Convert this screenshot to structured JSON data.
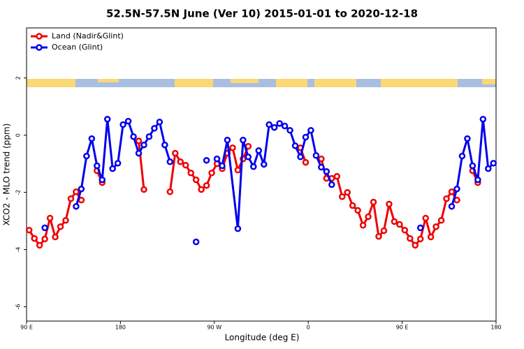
{
  "chart_data": {
    "type": "line",
    "title": "52.5N-57.5N June (Ver 10)   2015-01-01 to 2020-12-18",
    "x_label": "Longitude (deg E)",
    "y_label": "XCO2 - MLO trend (ppm)",
    "xlim": [
      90,
      540
    ],
    "ylim": [
      -6.5,
      3.75
    ],
    "xticks": [
      {
        "value": 90,
        "label": "90 E"
      },
      180,
      {
        "value": 270,
        "label": "90 W"
      },
      {
        "value": 360,
        "label": "0"
      },
      {
        "value": 450,
        "label": "90 E"
      },
      {
        "value": 540,
        "label": "180"
      }
    ],
    "yticks": [
      -6,
      -4,
      -2,
      0,
      2
    ],
    "legend": "top-left",
    "series": [
      {
        "name": "Land (Nadir&Glint)",
        "color": "#ee0000",
        "x": [
          92.5,
          97.5,
          102.5,
          107.5,
          112.5,
          117.5,
          122.5,
          127.5,
          132.5,
          137.5,
          142.5,
          null,
          157.5,
          162.5,
          null,
          197.5,
          202.5,
          null,
          227.5,
          232.5,
          237.5,
          242.5,
          247.5,
          252.5,
          257.5,
          262.5,
          267.5,
          272.5,
          277.5,
          282.5,
          287.5,
          292.5,
          297.5,
          302.5,
          null,
          352.5,
          357.5,
          null,
          372.5,
          377.5,
          382.5,
          387.5,
          392.5,
          397.5,
          402.5,
          407.5,
          412.5,
          417.5,
          422.5,
          427.5,
          432.5,
          437.5,
          442.5,
          447.5,
          452.5,
          457.5,
          462.5,
          467.5,
          472.5,
          477.5,
          482.5,
          487.5,
          492.5,
          497.5,
          502.5,
          null,
          517.5,
          522.5
        ],
        "values": [
          -3.32,
          -3.61,
          -3.85,
          -3.63,
          -2.9,
          -3.56,
          -3.2,
          -2.98,
          -2.22,
          -1.98,
          -2.27,
          null,
          -1.24,
          -1.66,
          null,
          -0.2,
          -1.9,
          null,
          -1.98,
          -0.63,
          -0.93,
          -1.05,
          -1.32,
          -1.56,
          -1.9,
          -1.76,
          -1.32,
          -1.0,
          -1.17,
          -0.63,
          -0.44,
          -1.22,
          -0.83,
          -0.39,
          null,
          -0.44,
          -0.95,
          null,
          -0.83,
          -1.51,
          -1.51,
          -1.44,
          -2.15,
          -2.0,
          -2.46,
          -2.63,
          -3.15,
          -2.85,
          -2.34,
          -3.54,
          -3.34,
          -2.41,
          -3.02,
          -3.12,
          -3.32,
          -3.61,
          -3.85,
          -3.63,
          -2.9,
          -3.56,
          -3.2,
          -2.98,
          -2.22,
          -1.98,
          -2.27,
          null,
          -1.24,
          -1.66
        ]
      },
      {
        "name": "Ocean (Glint)",
        "color": "#0000ee",
        "x": [
          107.5,
          null,
          137.5,
          142.5,
          147.5,
          152.5,
          157.5,
          162.5,
          167.5,
          172.5,
          177.5,
          182.5,
          187.5,
          192.5,
          197.5,
          202.5,
          207.5,
          212.5,
          217.5,
          222.5,
          227.5,
          null,
          252.5,
          null,
          262.5,
          null,
          272.5,
          277.5,
          282.5,
          292.5,
          297.5,
          302.5,
          307.5,
          312.5,
          317.5,
          322.5,
          327.5,
          332.5,
          337.5,
          342.5,
          347.5,
          352.5,
          357.5,
          362.5,
          367.5,
          372.5,
          377.5,
          382.5,
          null,
          467.5,
          null,
          497.5,
          502.5,
          507.5,
          512.5,
          517.5,
          522.5,
          527.5,
          532.5,
          537.5
        ],
        "values": [
          -3.24,
          null,
          -2.49,
          -1.88,
          -0.73,
          -0.12,
          -1.07,
          -1.56,
          0.56,
          -1.17,
          -0.98,
          0.37,
          0.49,
          -0.05,
          -0.63,
          -0.34,
          -0.05,
          0.24,
          0.46,
          -0.34,
          -0.93,
          null,
          -3.73,
          null,
          -0.88,
          null,
          -0.83,
          -1.07,
          -0.17,
          -3.27,
          -0.17,
          -0.76,
          -1.1,
          -0.54,
          -1.02,
          0.37,
          0.27,
          0.41,
          0.32,
          0.17,
          -0.37,
          -0.76,
          -0.07,
          0.17,
          -0.71,
          -1.12,
          -1.27,
          -1.73,
          null,
          -3.24,
          null,
          -2.49,
          -1.88,
          -0.73,
          -0.12,
          -1.07,
          -1.56,
          0.56,
          -1.17,
          -0.98
        ]
      }
    ]
  }
}
